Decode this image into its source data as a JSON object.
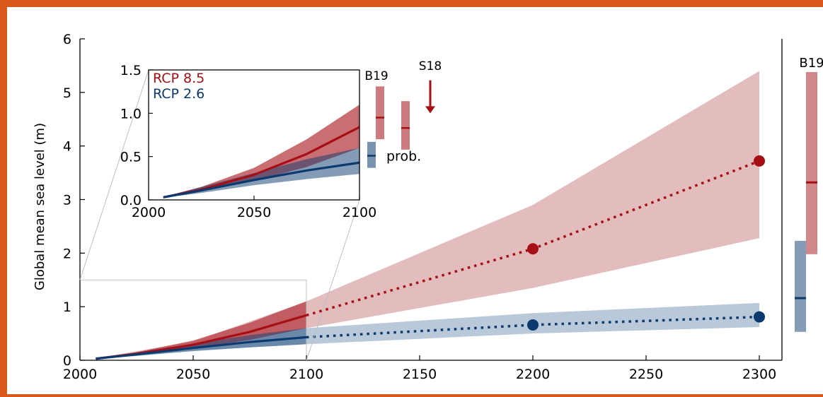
{
  "colors": {
    "rcp85": "#a50f15",
    "rcp85_band": "#e3bcbe",
    "rcp26": "#0b3a6e",
    "rcp26_band": "#b9c9d9",
    "frame": "#d9581c",
    "inset_outline": "#c0c0c0"
  },
  "chart_data": [
    {
      "type": "line",
      "xlim": [
        2000,
        2310
      ],
      "ylim": [
        0,
        6
      ],
      "ylabel": "Global mean sea level (m)",
      "xticks": [
        "2000",
        "2050",
        "2100",
        "2150",
        "2200",
        "2250",
        "2300"
      ],
      "yticks": [
        "0",
        "1",
        "2",
        "3",
        "4",
        "5",
        "6"
      ],
      "xtick_values": [
        2000,
        2050,
        2100,
        2150,
        2200,
        2250,
        2300
      ],
      "ytick_values": [
        0,
        1,
        2,
        3,
        4,
        5,
        6
      ],
      "series": [
        {
          "key": "rcp85",
          "solid": {
            "x": [
              2007,
              2025,
              2050,
              2075,
              2100
            ],
            "y": [
              0.03,
              0.12,
              0.29,
              0.53,
              0.84
            ]
          },
          "band": {
            "x": [
              2007,
              2050,
              2100,
              2200,
              2300
            ],
            "upper": [
              0.04,
              0.35,
              1.1,
              2.9,
              5.4
            ],
            "lower": [
              0.02,
              0.23,
              0.6,
              1.35,
              2.28
            ]
          },
          "dotted": {
            "x": [
              2100,
              2200,
              2300
            ],
            "y": [
              0.84,
              2.08,
              3.72
            ]
          },
          "markers": {
            "x": [
              2200,
              2300
            ],
            "y": [
              2.08,
              3.72
            ]
          }
        },
        {
          "key": "rcp26",
          "solid": {
            "x": [
              2007,
              2025,
              2050,
              2075,
              2100
            ],
            "y": [
              0.03,
              0.11,
              0.23,
              0.34,
              0.43
            ]
          },
          "band": {
            "x": [
              2007,
              2050,
              2100,
              2200,
              2300
            ],
            "upper": [
              0.04,
              0.29,
              0.6,
              0.88,
              1.07
            ],
            "lower": [
              0.02,
              0.18,
              0.3,
              0.5,
              0.62
            ]
          },
          "dotted": {
            "x": [
              2100,
              2200,
              2300
            ],
            "y": [
              0.43,
              0.66,
              0.81
            ]
          },
          "markers": {
            "x": [
              2200,
              2300
            ],
            "y": [
              0.66,
              0.81
            ]
          }
        }
      ],
      "side_bars": {
        "label": "B19",
        "bars": [
          {
            "key": "rcp85",
            "low": 1.98,
            "high": 5.38,
            "median": 3.32
          },
          {
            "key": "rcp26",
            "low": 0.53,
            "high": 2.23,
            "median": 1.16
          }
        ]
      },
      "inset_region": {
        "x": [
          2000,
          2100
        ],
        "y": [
          0,
          1.5
        ]
      }
    },
    {
      "type": "line",
      "xlim": [
        2000,
        2100
      ],
      "ylim": [
        0,
        1.5
      ],
      "xticks": [
        "2000",
        "2050",
        "2100"
      ],
      "yticks": [
        "0.0",
        "0.5",
        "1.0",
        "1.5"
      ],
      "xtick_values": [
        2000,
        2050,
        2100
      ],
      "ytick_values": [
        0,
        0.5,
        1.0,
        1.5
      ],
      "legend": [
        "RCP 8.5",
        "RCP 2.6"
      ],
      "series": [
        {
          "key": "rcp85",
          "name": "RCP 8.5",
          "line": {
            "x": [
              2007,
              2025,
              2050,
              2075,
              2100
            ],
            "y": [
              0.03,
              0.12,
              0.29,
              0.53,
              0.84
            ]
          },
          "band": {
            "x": [
              2007,
              2025,
              2050,
              2075,
              2100
            ],
            "upper": [
              0.035,
              0.15,
              0.37,
              0.7,
              1.1
            ],
            "lower": [
              0.025,
              0.1,
              0.22,
              0.38,
              0.6
            ]
          }
        },
        {
          "key": "rcp26",
          "name": "RCP 2.6",
          "line": {
            "x": [
              2007,
              2025,
              2050,
              2075,
              2100
            ],
            "y": [
              0.03,
              0.11,
              0.23,
              0.34,
              0.43
            ]
          },
          "band": {
            "x": [
              2007,
              2025,
              2050,
              2075,
              2100
            ],
            "upper": [
              0.035,
              0.15,
              0.31,
              0.47,
              0.6
            ],
            "lower": [
              0.025,
              0.08,
              0.17,
              0.24,
              0.3
            ]
          }
        }
      ],
      "side_markers": {
        "b19_label": "B19",
        "b19_bar": {
          "key": "rcp85",
          "low": 0.7,
          "high": 1.31,
          "median": 0.95
        },
        "second_bar": {
          "key": "rcp85",
          "low": 0.58,
          "high": 1.14,
          "median": 0.83
        },
        "s18_label": "S18",
        "s18_arrow": {
          "from": 1.38,
          "to": 1.0
        },
        "prob_label": "prob.",
        "prob_bar": {
          "key": "rcp26",
          "low": 0.37,
          "high": 0.67,
          "median": 0.51
        }
      }
    }
  ]
}
